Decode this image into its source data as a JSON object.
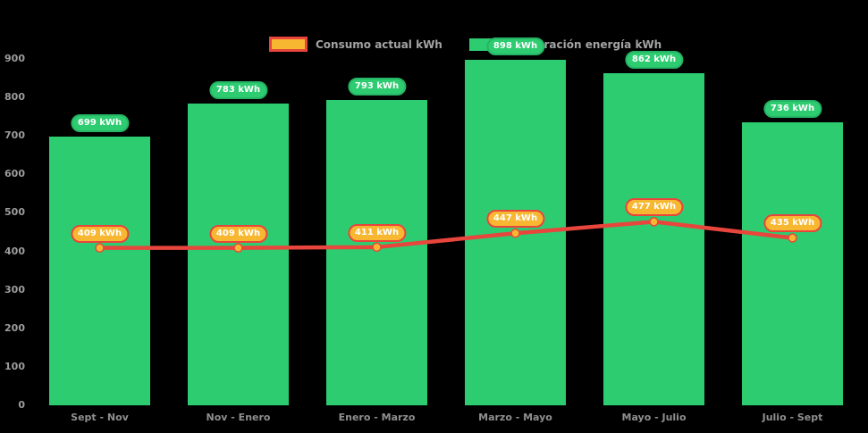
{
  "chart_data": {
    "type": "bar+line",
    "title": "",
    "categories": [
      "Sept - Nov",
      "Nov - Enero",
      "Enero - Marzo",
      "Marzo - Mayo",
      "Mayo - Julio",
      "Julio - Sept"
    ],
    "series": [
      {
        "name": "Consumo actual kWh",
        "type": "line",
        "values": [
          409,
          409,
          411,
          447,
          477,
          435
        ],
        "color": "#e8453c",
        "marker_color": "#f7b731",
        "label_suffix": " kWh"
      },
      {
        "name": "Generación energía kWh",
        "type": "bar",
        "values": [
          699,
          783,
          793,
          898,
          862,
          736
        ],
        "color": "#2ecc71",
        "label_border_color": "#25b565",
        "label_suffix": " kWh"
      }
    ],
    "ylim": [
      0,
      900
    ],
    "yticks": [
      0,
      100,
      200,
      300,
      400,
      500,
      600,
      700,
      800,
      900
    ],
    "grid": false,
    "legend_position": "top",
    "background": "#000000",
    "axis_text_color": "#9d9d9d"
  }
}
